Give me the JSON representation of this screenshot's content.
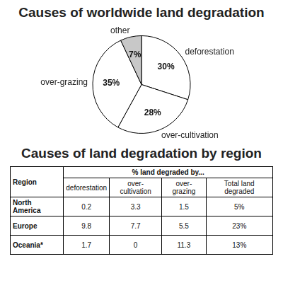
{
  "chart_data": {
    "type": "pie",
    "title": "Causes of worldwide land degradation",
    "categories": [
      "deforestation",
      "over-cultivation",
      "over-grazing",
      "other"
    ],
    "values": [
      30,
      28,
      35,
      7
    ],
    "value_labels": [
      "30%",
      "28%",
      "35%",
      "7%"
    ],
    "data_labels": true,
    "colors": [
      "#ffffff",
      "#ffffff",
      "#ffffff",
      "#c8c8c8"
    ]
  },
  "table": {
    "title": "Causes of land degradation by region",
    "header": [
      "Region",
      "% land degraded by..."
    ],
    "columns": [
      "deforestation",
      "over-cultivation",
      "over-grazing",
      "Total land degraded"
    ],
    "rows": [
      [
        "North America",
        0.2,
        3.3,
        1.5,
        "5%"
      ],
      [
        "Europe",
        9.8,
        7.7,
        5.5,
        "23%"
      ],
      [
        "Oceania*",
        1.7,
        0,
        11.3,
        "13%"
      ]
    ]
  }
}
